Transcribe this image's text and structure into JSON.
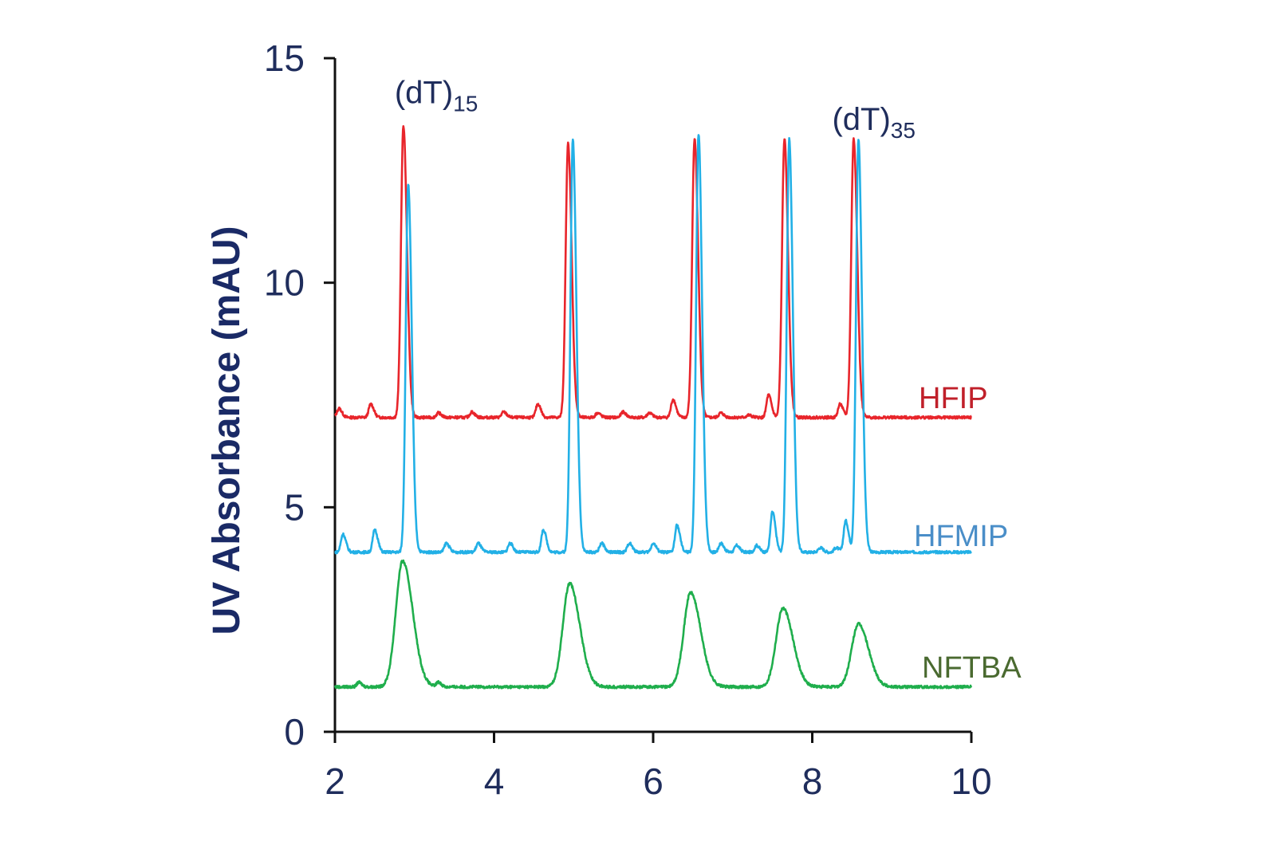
{
  "chart_data": {
    "type": "line",
    "title": "",
    "xlabel": "",
    "ylabel": "UV Absorbance (mAU)",
    "xlim": [
      2,
      10
    ],
    "ylim": [
      0,
      15
    ],
    "xticks": [
      "2",
      "4",
      "6",
      "8",
      "10"
    ],
    "yticks": [
      "0",
      "5",
      "10",
      "15"
    ],
    "grid": false,
    "annotations": [
      {
        "text": "(dT)",
        "sub": "15",
        "x": 2.75,
        "y": 14.0
      },
      {
        "text": "(dT)",
        "sub": "35",
        "x": 8.25,
        "y": 13.4
      }
    ],
    "series": [
      {
        "name": "HFIP",
        "color": "#e8252b",
        "label_color": "#c0202a",
        "baseline": 7.0,
        "peaks": [
          [
            2.86,
            13.5
          ],
          [
            4.93,
            13.1
          ],
          [
            6.52,
            13.2
          ],
          [
            7.65,
            13.2
          ],
          [
            8.52,
            13.2
          ],
          [
            2.05,
            7.2
          ],
          [
            2.45,
            7.3
          ],
          [
            3.3,
            7.1
          ],
          [
            3.72,
            7.12
          ],
          [
            4.12,
            7.12
          ],
          [
            4.55,
            7.3
          ],
          [
            5.3,
            7.1
          ],
          [
            5.62,
            7.12
          ],
          [
            5.95,
            7.1
          ],
          [
            6.25,
            7.4
          ],
          [
            6.85,
            7.1
          ],
          [
            7.2,
            7.05
          ],
          [
            7.45,
            7.5
          ],
          [
            8.35,
            7.3
          ]
        ]
      },
      {
        "name": "HFMIP",
        "color": "#22b0e6",
        "label_color": "#4a8ec8",
        "baseline": 4.0,
        "peaks": [
          [
            2.92,
            12.2
          ],
          [
            4.99,
            13.2
          ],
          [
            6.57,
            13.3
          ],
          [
            7.71,
            13.2
          ],
          [
            8.58,
            13.2
          ],
          [
            2.1,
            4.4
          ],
          [
            2.5,
            4.5
          ],
          [
            3.4,
            4.2
          ],
          [
            3.8,
            4.2
          ],
          [
            4.2,
            4.2
          ],
          [
            4.62,
            4.5
          ],
          [
            5.35,
            4.2
          ],
          [
            5.7,
            4.2
          ],
          [
            6.0,
            4.2
          ],
          [
            6.3,
            4.6
          ],
          [
            6.85,
            4.2
          ],
          [
            7.05,
            4.15
          ],
          [
            7.3,
            4.15
          ],
          [
            7.5,
            4.9
          ],
          [
            8.1,
            4.1
          ],
          [
            8.3,
            4.1
          ],
          [
            8.42,
            4.7
          ]
        ]
      },
      {
        "name": "NFTBA",
        "color": "#1fae4c",
        "label_color": "#4a6a30",
        "baseline": 1.0,
        "peaks": [
          [
            2.85,
            3.8
          ],
          [
            4.95,
            3.3
          ],
          [
            6.47,
            3.1
          ],
          [
            7.63,
            2.75
          ],
          [
            8.58,
            2.4
          ],
          [
            2.3,
            1.1
          ],
          [
            3.3,
            1.1
          ]
        ]
      }
    ]
  }
}
